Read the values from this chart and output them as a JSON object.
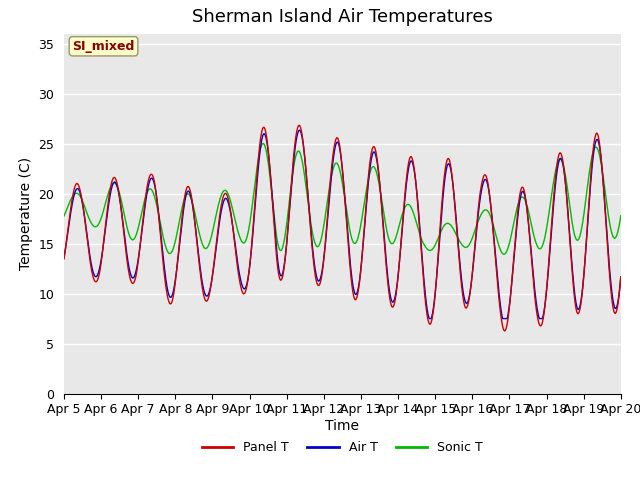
{
  "title": "Sherman Island Air Temperatures",
  "xlabel": "Time",
  "ylabel": "Temperature (C)",
  "ylim": [
    0,
    36
  ],
  "yticks": [
    0,
    5,
    10,
    15,
    20,
    25,
    30,
    35
  ],
  "x_tick_labels": [
    "Apr 5",
    "Apr 6",
    "Apr 7",
    "Apr 8",
    "Apr 9",
    "Apr 10",
    "Apr 11",
    "Apr 12",
    "Apr 13",
    "Apr 14",
    "Apr 15",
    "Apr 16",
    "Apr 17",
    "Apr 18",
    "Apr 19",
    "Apr 20"
  ],
  "panel_color": "#cc0000",
  "air_color": "#0000cc",
  "sonic_color": "#00bb00",
  "bg_color": "#e8e8e8",
  "annotation_text": "SI_mixed",
  "annotation_facecolor": "#ffffcc",
  "annotation_edgecolor": "#999966",
  "annotation_textcolor": "#880000",
  "legend_labels": [
    "Panel T",
    "Air T",
    "Sonic T"
  ],
  "title_fontsize": 13,
  "axis_label_fontsize": 10,
  "tick_fontsize": 9
}
